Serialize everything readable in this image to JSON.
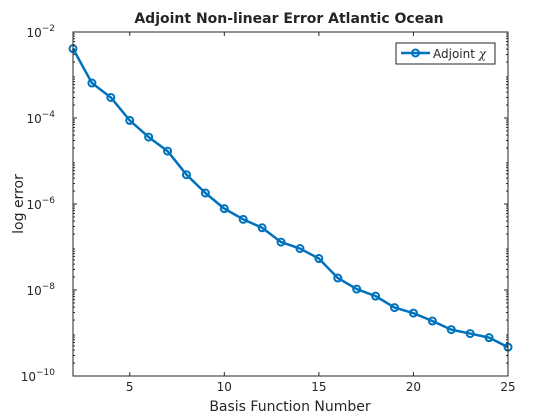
{
  "chart_data": {
    "type": "line",
    "title": "Adjoint Non-linear Error Atlantic Ocean",
    "xlabel": "Basis Function Number",
    "ylabel": "log error",
    "xlim": [
      2,
      25
    ],
    "ylim": [
      1e-10,
      0.01
    ],
    "yscale": "log",
    "grid": false,
    "legend_position": "top-right",
    "x_ticks": [
      5,
      10,
      15,
      20,
      25
    ],
    "y_ticks": [
      {
        "value": 1e-10,
        "mant": "10",
        "exp": "−10"
      },
      {
        "value": 1e-08,
        "mant": "10",
        "exp": "−8"
      },
      {
        "value": 1e-06,
        "mant": "10",
        "exp": "−6"
      },
      {
        "value": 0.0001,
        "mant": "10",
        "exp": "−4"
      },
      {
        "value": 0.01,
        "mant": "10",
        "exp": "−2"
      }
    ],
    "series": [
      {
        "name": "Adjoint χ",
        "color": "#0072bd",
        "marker": "circle",
        "x": [
          2,
          3,
          4,
          5,
          6,
          7,
          8,
          9,
          10,
          11,
          12,
          13,
          14,
          15,
          16,
          17,
          18,
          19,
          20,
          21,
          22,
          23,
          24,
          25
        ],
        "y": [
          0.0041,
          0.00065,
          0.0003,
          8.8e-05,
          3.6e-05,
          1.7e-05,
          4.8e-06,
          1.8e-06,
          7.8e-07,
          4.4e-07,
          2.8e-07,
          1.3e-07,
          9.2e-08,
          5.4e-08,
          1.9e-08,
          1.05e-08,
          7.2e-09,
          3.9e-09,
          2.9e-09,
          1.9e-09,
          1.2e-09,
          9.7e-10,
          7.8e-10,
          4.7e-10
        ]
      }
    ]
  },
  "legend": {
    "label_main": "Adjoint ",
    "label_symbol": "χ"
  }
}
